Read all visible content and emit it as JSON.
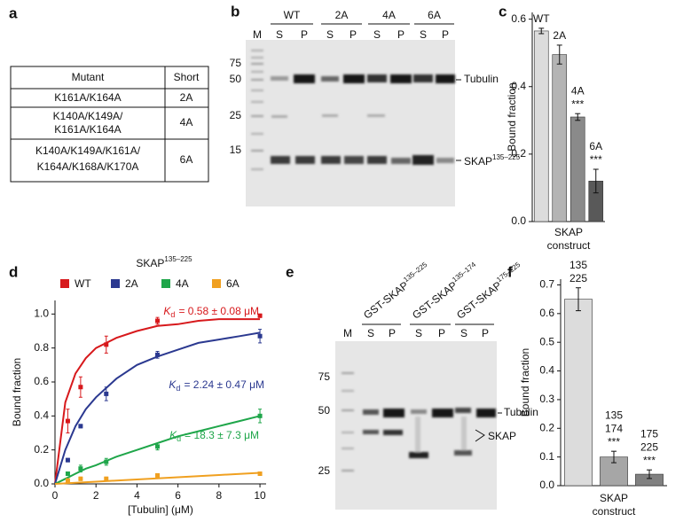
{
  "panel_labels": [
    "a",
    "b",
    "c",
    "d",
    "e",
    "f"
  ],
  "table": {
    "header": [
      "Mutant",
      "Short"
    ],
    "rows": [
      [
        [
          "K161A/K164A"
        ],
        "2A"
      ],
      [
        [
          "K140A/K149A/",
          "K161A/K164A"
        ],
        "4A"
      ],
      [
        [
          "K140A/K149A/K161A/",
          "K164A/K168A/K170A"
        ],
        "6A"
      ]
    ]
  },
  "gel_b": {
    "lane_marker": "M",
    "groups": [
      "WT",
      "2A",
      "4A",
      "6A"
    ],
    "lanes": [
      "S",
      "P"
    ],
    "markers": [
      75,
      50,
      25,
      15
    ],
    "bands": [
      "Tubulin",
      {
        "text": "SKAP",
        "sup": "135–225"
      }
    ]
  },
  "gel_e": {
    "lane_marker": "M",
    "constructs": [
      {
        "text": "GST-SKAP",
        "sup": "135–225"
      },
      {
        "text": "GST-SKAP",
        "sup": "135–174"
      },
      {
        "text": "GST-SKAP",
        "sup": "175–225"
      }
    ],
    "lanes": [
      "S",
      "P"
    ],
    "markers": [
      75,
      50,
      25
    ],
    "bands": [
      "Tubulin",
      "SKAP"
    ]
  },
  "chart_data": [
    {
      "type": "bar",
      "categories": [
        [
          "WT"
        ],
        [
          "2A"
        ],
        [
          "4A"
        ],
        [
          "6A"
        ]
      ],
      "values": [
        0.565,
        0.495,
        0.31,
        0.12
      ],
      "errors": [
        0.008,
        0.028,
        0.01,
        0.035
      ],
      "significance": [
        null,
        null,
        "***",
        "***"
      ],
      "colors": [
        "#dcdcdc",
        "#b4b4b4",
        "#8a8a8a",
        "#595959"
      ],
      "ylabel": "Bound fraction",
      "xlabel": [
        "SKAP",
        "construct"
      ],
      "ylim": [
        0,
        0.62
      ],
      "yticks": [
        {
          "value": 0,
          "label": "0.0"
        },
        0.2,
        0.4,
        0.6
      ]
    },
    {
      "type": "scatter",
      "legend_title": {
        "text": "SKAP",
        "sup": "135–225"
      },
      "kd_symbol": "K",
      "kd_subscript": "d",
      "x": [
        0.625,
        1.25,
        2.5,
        5,
        10
      ],
      "fit_x": [
        0,
        0.5,
        1,
        1.5,
        2,
        3,
        4,
        5,
        6,
        7,
        8,
        9,
        10
      ],
      "series": [
        {
          "name": "WT",
          "color": "#d7191c",
          "values": [
            0.37,
            0.57,
            0.82,
            0.96,
            0.99
          ],
          "errors": [
            0.07,
            0.06,
            0.05,
            0.02,
            0.01
          ],
          "fit": [
            0,
            0.48,
            0.65,
            0.74,
            0.8,
            0.86,
            0.9,
            0.93,
            0.94,
            0.96,
            0.97,
            0.97,
            0.97
          ],
          "annotation": "= 0.58 ± 0.08 μM"
        },
        {
          "name": "2A",
          "color": "#2b3990",
          "values": [
            0.14,
            0.34,
            0.53,
            0.76,
            0.87
          ],
          "errors": [
            0.01,
            0.01,
            0.04,
            0.02,
            0.04
          ],
          "fit": [
            0,
            0.2,
            0.34,
            0.44,
            0.51,
            0.62,
            0.7,
            0.75,
            0.79,
            0.83,
            0.85,
            0.87,
            0.89
          ],
          "annotation": "= 2.24 ± 0.47 μM"
        },
        {
          "name": "4A",
          "color": "#1fa64a",
          "values": [
            0.06,
            0.09,
            0.13,
            0.22,
            0.4
          ],
          "errors": [
            0.01,
            0.02,
            0.02,
            0.02,
            0.04
          ],
          "fit": [
            0,
            0.03,
            0.06,
            0.09,
            0.11,
            0.16,
            0.2,
            0.24,
            0.28,
            0.31,
            0.34,
            0.37,
            0.4
          ],
          "annotation": "= 18.3 ± 7.3 μM"
        },
        {
          "name": "6A",
          "color": "#f0a020",
          "values": [
            0.02,
            0.03,
            0.03,
            0.05,
            0.06
          ],
          "errors": [
            0.01,
            0.01,
            0.01,
            0.01,
            0.01
          ],
          "fit": [
            0,
            0.003,
            0.007,
            0.01,
            0.013,
            0.02,
            0.026,
            0.033,
            0.039,
            0.046,
            0.052,
            0.059,
            0.065
          ]
        }
      ],
      "xlabel": "[Tubulin] (μM)",
      "ylabel": "Bound fraction",
      "xlim": [
        0,
        10.3
      ],
      "xticks": [
        0,
        2,
        4,
        6,
        8,
        10
      ],
      "ylim": [
        0,
        1.08
      ],
      "yticks": [
        {
          "value": 0,
          "label": "0.0"
        },
        0.2,
        0.4,
        0.6,
        0.8,
        {
          "value": 1,
          "label": "1.0"
        }
      ]
    },
    {
      "type": "bar",
      "categories": [
        [
          "135",
          "225"
        ],
        [
          "135",
          "174"
        ],
        [
          "175",
          "225"
        ]
      ],
      "values": [
        0.65,
        0.1,
        0.04
      ],
      "errors": [
        0.04,
        0.02,
        0.015
      ],
      "significance": [
        null,
        "***",
        "***"
      ],
      "colors": [
        "#dcdcdc",
        "#a6a6a6",
        "#808080"
      ],
      "ylabel": "Bound fraction",
      "xlabel": [
        "SKAP",
        "construct"
      ],
      "ylim": [
        0,
        0.72
      ],
      "yticks": [
        {
          "value": 0,
          "label": "0.0"
        },
        0.1,
        0.2,
        0.3,
        0.4,
        0.5,
        0.6,
        0.7
      ]
    }
  ]
}
